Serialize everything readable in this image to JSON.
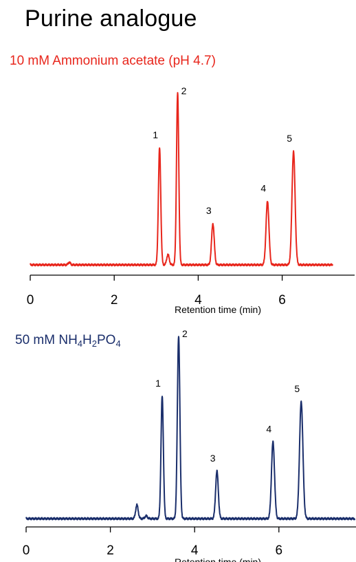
{
  "title": "Purine analogue",
  "conditions": {
    "top": "10 mM Ammonium acetate (pH 4.7)",
    "bottom_parts": [
      "50 mM NH",
      "4",
      "H",
      "2",
      "PO",
      "4"
    ]
  },
  "colors": {
    "top": "#e8261c",
    "bottom": "#1a2e6b"
  },
  "chart_data": [
    {
      "type": "line",
      "name": "10 mM Ammonium acetate (pH 4.7)",
      "xlabel": "Retention time (min)",
      "ylabel": "",
      "xlim": [
        0,
        7.8
      ],
      "xticks": [
        0,
        2,
        4,
        6
      ],
      "trace_range": [
        0,
        7.2
      ],
      "baseline": 0,
      "peaks": [
        {
          "label": "",
          "rt": 0.93,
          "height": 0.015,
          "width": 0.025
        },
        {
          "label": "1",
          "rt": 3.08,
          "height": 0.68,
          "width": 0.028
        },
        {
          "label": "",
          "rt": 3.28,
          "height": 0.06,
          "width": 0.03
        },
        {
          "label": "2",
          "rt": 3.51,
          "height": 1.0,
          "width": 0.027
        },
        {
          "label": "3",
          "rt": 4.35,
          "height": 0.24,
          "width": 0.032
        },
        {
          "label": "4",
          "rt": 5.65,
          "height": 0.37,
          "width": 0.035
        },
        {
          "label": "5",
          "rt": 6.27,
          "height": 0.66,
          "width": 0.037
        }
      ]
    },
    {
      "type": "line",
      "name": "50 mM NH4H2PO4",
      "xlabel": "Retention time (min)",
      "ylabel": "",
      "xlim": [
        0,
        7.8
      ],
      "xticks": [
        0,
        2,
        4,
        6
      ],
      "trace_range": [
        0,
        7.8
      ],
      "baseline": 0,
      "peaks": [
        {
          "label": "",
          "rt": 2.63,
          "height": 0.075,
          "width": 0.03
        },
        {
          "label": "",
          "rt": 2.85,
          "height": 0.015,
          "width": 0.03
        },
        {
          "label": "1",
          "rt": 3.23,
          "height": 0.67,
          "width": 0.028
        },
        {
          "label": "2",
          "rt": 3.62,
          "height": 1.0,
          "width": 0.03
        },
        {
          "label": "3",
          "rt": 4.53,
          "height": 0.26,
          "width": 0.032
        },
        {
          "label": "4",
          "rt": 5.86,
          "height": 0.42,
          "width": 0.036
        },
        {
          "label": "5",
          "rt": 6.53,
          "height": 0.64,
          "width": 0.04
        }
      ]
    }
  ]
}
